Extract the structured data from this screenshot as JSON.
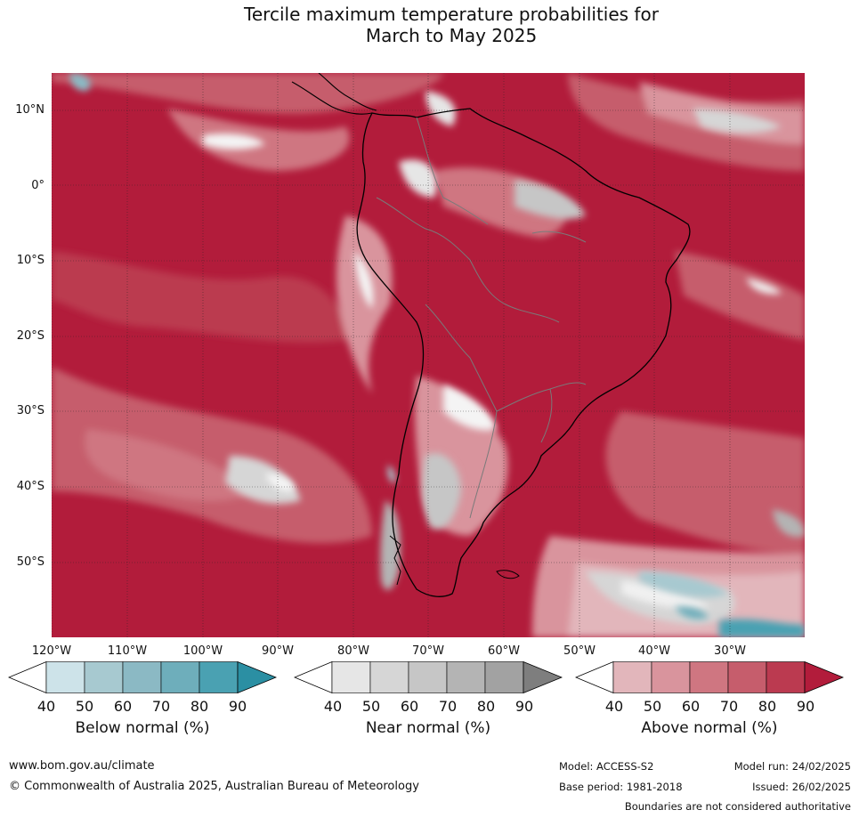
{
  "title_line1": "Tercile maximum temperature probabilities for",
  "title_line2": "March to May 2025",
  "lat_labels": [
    "10°N",
    "0°",
    "10°S",
    "20°S",
    "30°S",
    "40°S",
    "50°S"
  ],
  "lon_labels": [
    "120°W",
    "110°W",
    "100°W",
    "90°W",
    "80°W",
    "70°W",
    "60°W",
    "50°W",
    "40°W",
    "30°W"
  ],
  "colorbars": [
    {
      "title": "Below normal (%)",
      "ticks": [
        "40",
        "50",
        "60",
        "70",
        "80",
        "90"
      ],
      "colors": [
        "#ffffff",
        "#cde3e9",
        "#a7c9d0",
        "#8bb9c4",
        "#6eaebb",
        "#4aa1b2",
        "#2b8fa3"
      ]
    },
    {
      "title": "Near normal (%)",
      "ticks": [
        "40",
        "50",
        "60",
        "70",
        "80",
        "90"
      ],
      "colors": [
        "#ffffff",
        "#e6e6e6",
        "#d6d6d6",
        "#c6c6c6",
        "#b4b4b4",
        "#a2a2a2",
        "#7e7e7e"
      ]
    },
    {
      "title": "Above normal (%)",
      "ticks": [
        "40",
        "50",
        "60",
        "70",
        "80",
        "90"
      ],
      "colors": [
        "#ffffff",
        "#e2b6bb",
        "#d9949d",
        "#cf7681",
        "#c65d6c",
        "#bb3a50",
        "#b21c3b"
      ]
    }
  ],
  "footer": {
    "website": "www.bom.gov.au/climate",
    "copyright": "© Commonwealth of Australia 2025, Australian Bureau of Meteorology",
    "model": "Model: ACCESS-S2",
    "model_run": "Model run: 24/02/2025",
    "base_period": "Base period: 1981-2018",
    "issued": "Issued: 26/02/2025",
    "disclaimer": "Boundaries are not considered authoritative"
  }
}
